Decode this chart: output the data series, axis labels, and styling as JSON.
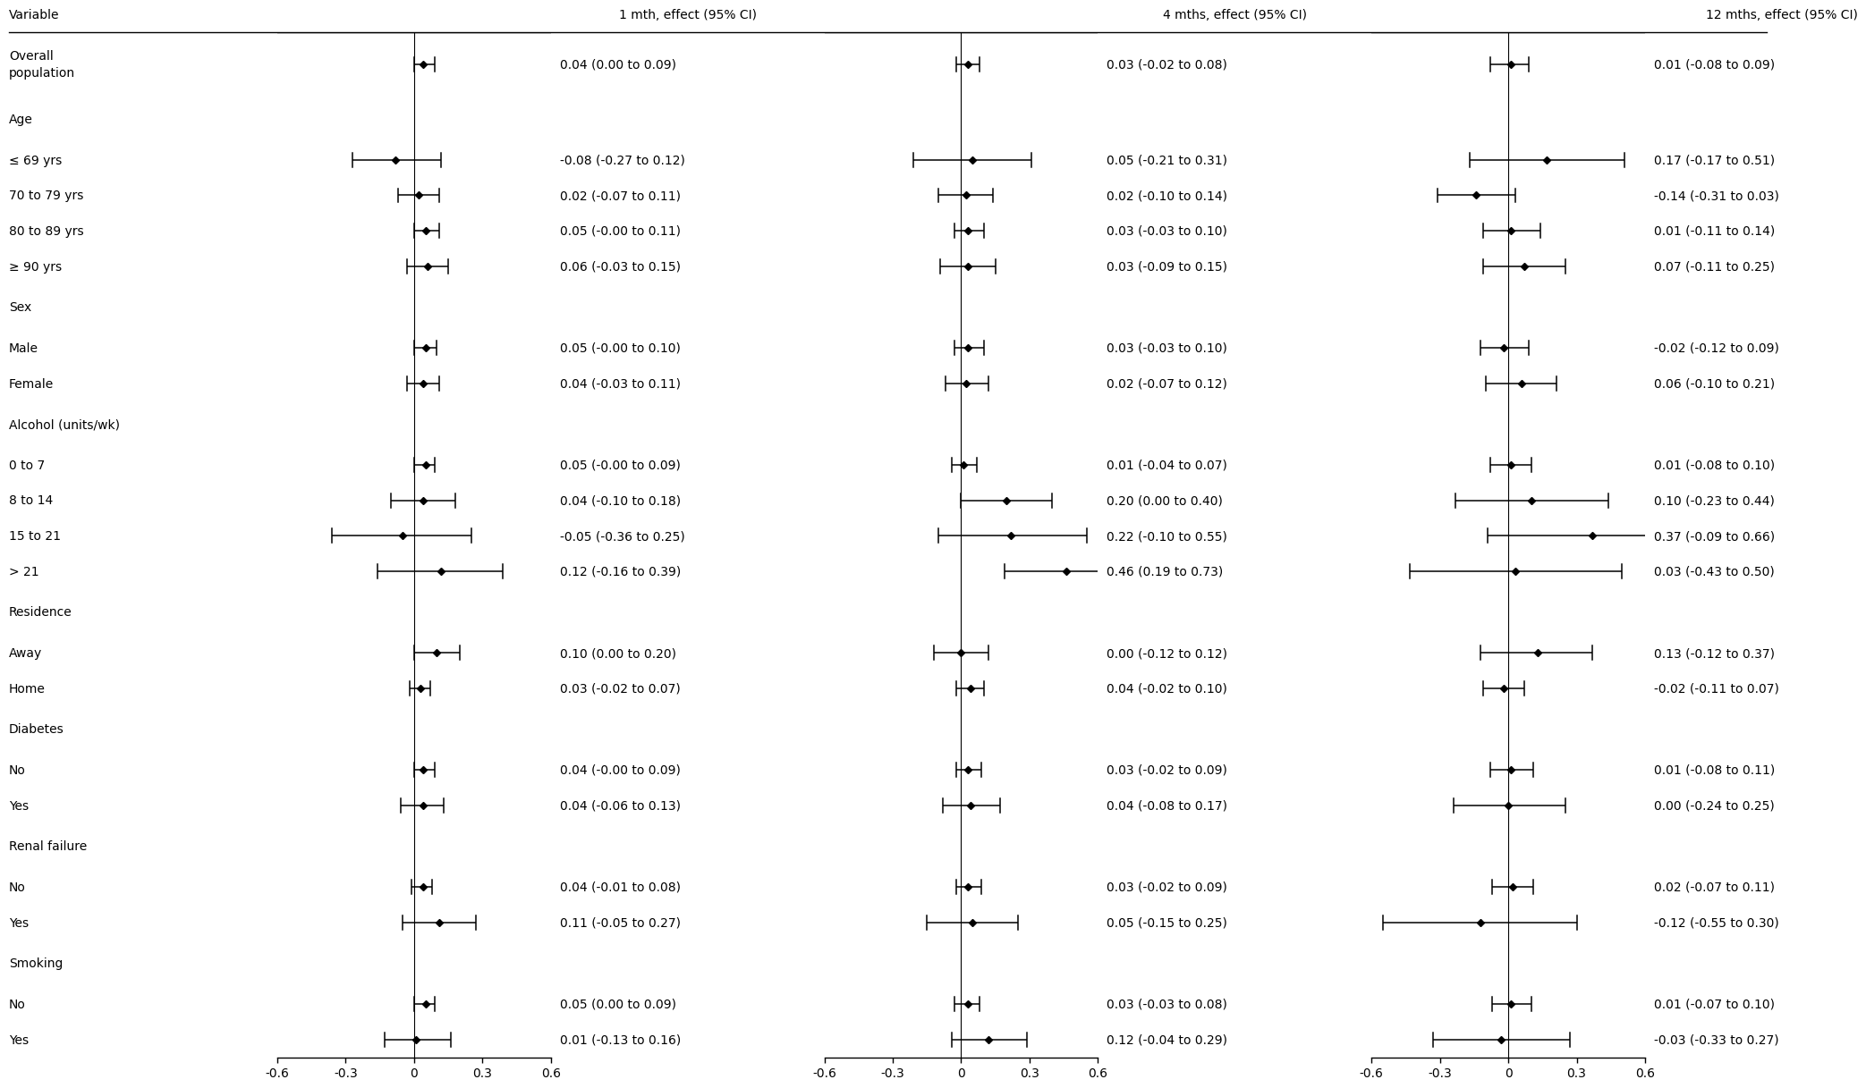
{
  "rows": [
    {
      "label": "Overall\npopulation",
      "is_header": false,
      "is_overall": true,
      "m1": 0.04,
      "m1_lo": 0.0,
      "m1_hi": 0.09,
      "m1_text": "0.04 (0.00 to 0.09)",
      "m4": 0.03,
      "m4_lo": -0.02,
      "m4_hi": 0.08,
      "m4_text": "0.03 (-0.02 to 0.08)",
      "m12": 0.01,
      "m12_lo": -0.08,
      "m12_hi": 0.09,
      "m12_text": "0.01 (-0.08 to 0.09)"
    },
    {
      "label": "Age",
      "is_header": true
    },
    {
      "label": "≤ 69 yrs",
      "is_header": false,
      "m1": -0.08,
      "m1_lo": -0.27,
      "m1_hi": 0.12,
      "m1_text": "-0.08 (-0.27 to 0.12)",
      "m4": 0.05,
      "m4_lo": -0.21,
      "m4_hi": 0.31,
      "m4_text": "0.05 (-0.21 to 0.31)",
      "m12": 0.17,
      "m12_lo": -0.17,
      "m12_hi": 0.51,
      "m12_text": "0.17 (-0.17 to 0.51)"
    },
    {
      "label": "70 to 79 yrs",
      "is_header": false,
      "m1": 0.02,
      "m1_lo": -0.07,
      "m1_hi": 0.11,
      "m1_text": "0.02 (-0.07 to 0.11)",
      "m4": 0.02,
      "m4_lo": -0.1,
      "m4_hi": 0.14,
      "m4_text": "0.02 (-0.10 to 0.14)",
      "m12": -0.14,
      "m12_lo": -0.31,
      "m12_hi": 0.03,
      "m12_text": "-0.14 (-0.31 to 0.03)"
    },
    {
      "label": "80 to 89 yrs",
      "is_header": false,
      "m1": 0.05,
      "m1_lo": -0.0,
      "m1_hi": 0.11,
      "m1_text": "0.05 (-0.00 to 0.11)",
      "m4": 0.03,
      "m4_lo": -0.03,
      "m4_hi": 0.1,
      "m4_text": "0.03 (-0.03 to 0.10)",
      "m12": 0.01,
      "m12_lo": -0.11,
      "m12_hi": 0.14,
      "m12_text": "0.01 (-0.11 to 0.14)"
    },
    {
      "label": "≥ 90 yrs",
      "is_header": false,
      "m1": 0.06,
      "m1_lo": -0.03,
      "m1_hi": 0.15,
      "m1_text": "0.06 (-0.03 to 0.15)",
      "m4": 0.03,
      "m4_lo": -0.09,
      "m4_hi": 0.15,
      "m4_text": "0.03 (-0.09 to 0.15)",
      "m12": 0.07,
      "m12_lo": -0.11,
      "m12_hi": 0.25,
      "m12_text": "0.07 (-0.11 to 0.25)"
    },
    {
      "label": "Sex",
      "is_header": true
    },
    {
      "label": "Male",
      "is_header": false,
      "m1": 0.05,
      "m1_lo": -0.0,
      "m1_hi": 0.1,
      "m1_text": "0.05 (-0.00 to 0.10)",
      "m4": 0.03,
      "m4_lo": -0.03,
      "m4_hi": 0.1,
      "m4_text": "0.03 (-0.03 to 0.10)",
      "m12": -0.02,
      "m12_lo": -0.12,
      "m12_hi": 0.09,
      "m12_text": "-0.02 (-0.12 to 0.09)"
    },
    {
      "label": "Female",
      "is_header": false,
      "m1": 0.04,
      "m1_lo": -0.03,
      "m1_hi": 0.11,
      "m1_text": "0.04 (-0.03 to 0.11)",
      "m4": 0.02,
      "m4_lo": -0.07,
      "m4_hi": 0.12,
      "m4_text": "0.02 (-0.07 to 0.12)",
      "m12": 0.06,
      "m12_lo": -0.1,
      "m12_hi": 0.21,
      "m12_text": "0.06 (-0.10 to 0.21)"
    },
    {
      "label": "Alcohol (units/wk)",
      "is_header": true
    },
    {
      "label": "0 to 7",
      "is_header": false,
      "m1": 0.05,
      "m1_lo": -0.0,
      "m1_hi": 0.09,
      "m1_text": "0.05 (-0.00 to 0.09)",
      "m4": 0.01,
      "m4_lo": -0.04,
      "m4_hi": 0.07,
      "m4_text": "0.01 (-0.04 to 0.07)",
      "m12": 0.01,
      "m12_lo": -0.08,
      "m12_hi": 0.1,
      "m12_text": "0.01 (-0.08 to 0.10)"
    },
    {
      "label": "8 to 14",
      "is_header": false,
      "m1": 0.04,
      "m1_lo": -0.1,
      "m1_hi": 0.18,
      "m1_text": "0.04 (-0.10 to 0.18)",
      "m4": 0.2,
      "m4_lo": 0.0,
      "m4_hi": 0.4,
      "m4_text": "0.20 (0.00 to 0.40)",
      "m12": 0.1,
      "m12_lo": -0.23,
      "m12_hi": 0.44,
      "m12_text": "0.10 (-0.23 to 0.44)"
    },
    {
      "label": "15 to 21",
      "is_header": false,
      "m1": -0.05,
      "m1_lo": -0.36,
      "m1_hi": 0.25,
      "m1_text": "-0.05 (-0.36 to 0.25)",
      "m4": 0.22,
      "m4_lo": -0.1,
      "m4_hi": 0.55,
      "m4_text": "0.22 (-0.10 to 0.55)",
      "m12": 0.37,
      "m12_lo": -0.09,
      "m12_hi": 0.66,
      "m12_text": "0.37 (-0.09 to 0.66)"
    },
    {
      "label": "> 21",
      "is_header": false,
      "m1": 0.12,
      "m1_lo": -0.16,
      "m1_hi": 0.39,
      "m1_text": "0.12 (-0.16 to 0.39)",
      "m4": 0.46,
      "m4_lo": 0.19,
      "m4_hi": 0.73,
      "m4_text": "0.46 (0.19 to 0.73)",
      "m12": 0.03,
      "m12_lo": -0.43,
      "m12_hi": 0.5,
      "m12_text": "0.03 (-0.43 to 0.50)"
    },
    {
      "label": "Residence",
      "is_header": true
    },
    {
      "label": "Away",
      "is_header": false,
      "m1": 0.1,
      "m1_lo": 0.0,
      "m1_hi": 0.2,
      "m1_text": "0.10 (0.00 to 0.20)",
      "m4": 0.0,
      "m4_lo": -0.12,
      "m4_hi": 0.12,
      "m4_text": "0.00 (-0.12 to 0.12)",
      "m12": 0.13,
      "m12_lo": -0.12,
      "m12_hi": 0.37,
      "m12_text": "0.13 (-0.12 to 0.37)"
    },
    {
      "label": "Home",
      "is_header": false,
      "m1": 0.03,
      "m1_lo": -0.02,
      "m1_hi": 0.07,
      "m1_text": "0.03 (-0.02 to 0.07)",
      "m4": 0.04,
      "m4_lo": -0.02,
      "m4_hi": 0.1,
      "m4_text": "0.04 (-0.02 to 0.10)",
      "m12": -0.02,
      "m12_lo": -0.11,
      "m12_hi": 0.07,
      "m12_text": "-0.02 (-0.11 to 0.07)"
    },
    {
      "label": "Diabetes",
      "is_header": true
    },
    {
      "label": "No",
      "is_header": false,
      "m1": 0.04,
      "m1_lo": -0.0,
      "m1_hi": 0.09,
      "m1_text": "0.04 (-0.00 to 0.09)",
      "m4": 0.03,
      "m4_lo": -0.02,
      "m4_hi": 0.09,
      "m4_text": "0.03 (-0.02 to 0.09)",
      "m12": 0.01,
      "m12_lo": -0.08,
      "m12_hi": 0.11,
      "m12_text": "0.01 (-0.08 to 0.11)"
    },
    {
      "label": "Yes",
      "is_header": false,
      "m1": 0.04,
      "m1_lo": -0.06,
      "m1_hi": 0.13,
      "m1_text": "0.04 (-0.06 to 0.13)",
      "m4": 0.04,
      "m4_lo": -0.08,
      "m4_hi": 0.17,
      "m4_text": "0.04 (-0.08 to 0.17)",
      "m12": 0.0,
      "m12_lo": -0.24,
      "m12_hi": 0.25,
      "m12_text": "0.00 (-0.24 to 0.25)"
    },
    {
      "label": "Renal failure",
      "is_header": true
    },
    {
      "label": "No",
      "is_header": false,
      "m1": 0.04,
      "m1_lo": -0.01,
      "m1_hi": 0.08,
      "m1_text": "0.04 (-0.01 to 0.08)",
      "m4": 0.03,
      "m4_lo": -0.02,
      "m4_hi": 0.09,
      "m4_text": "0.03 (-0.02 to 0.09)",
      "m12": 0.02,
      "m12_lo": -0.07,
      "m12_hi": 0.11,
      "m12_text": "0.02 (-0.07 to 0.11)"
    },
    {
      "label": "Yes",
      "is_header": false,
      "m1": 0.11,
      "m1_lo": -0.05,
      "m1_hi": 0.27,
      "m1_text": "0.11 (-0.05 to 0.27)",
      "m4": 0.05,
      "m4_lo": -0.15,
      "m4_hi": 0.25,
      "m4_text": "0.05 (-0.15 to 0.25)",
      "m12": -0.12,
      "m12_lo": -0.55,
      "m12_hi": 0.3,
      "m12_text": "-0.12 (-0.55 to 0.30)"
    },
    {
      "label": "Smoking",
      "is_header": true
    },
    {
      "label": "No",
      "is_header": false,
      "m1": 0.05,
      "m1_lo": 0.0,
      "m1_hi": 0.09,
      "m1_text": "0.05 (0.00 to 0.09)",
      "m4": 0.03,
      "m4_lo": -0.03,
      "m4_hi": 0.08,
      "m4_text": "0.03 (-0.03 to 0.08)",
      "m12": 0.01,
      "m12_lo": -0.07,
      "m12_hi": 0.1,
      "m12_text": "0.01 (-0.07 to 0.10)"
    },
    {
      "label": "Yes",
      "is_header": false,
      "m1": 0.01,
      "m1_lo": -0.13,
      "m1_hi": 0.16,
      "m1_text": "0.01 (-0.13 to 0.16)",
      "m4": 0.12,
      "m4_lo": -0.04,
      "m4_hi": 0.29,
      "m4_text": "0.12 (-0.04 to 0.29)",
      "m12": -0.03,
      "m12_lo": -0.33,
      "m12_hi": 0.27,
      "m12_text": "-0.03 (-0.33 to 0.27)"
    }
  ],
  "col_headers": [
    "Variable",
    "1 mth, effect (95% CI)",
    "4 mths, effect (95% CI)",
    "12 mths, effect (95% CI)"
  ],
  "xlim": [
    -0.6,
    0.6
  ],
  "xticks": [
    -0.6,
    -0.3,
    0,
    0.3,
    0.6
  ],
  "xticklabels": [
    "-0.6",
    "-0.3",
    "0",
    "0.3",
    "0.6"
  ],
  "bg_color": "#ffffff",
  "line_color": "#000000",
  "fontsize": 10,
  "text_fontsize": 10,
  "marker_size": 4.5
}
